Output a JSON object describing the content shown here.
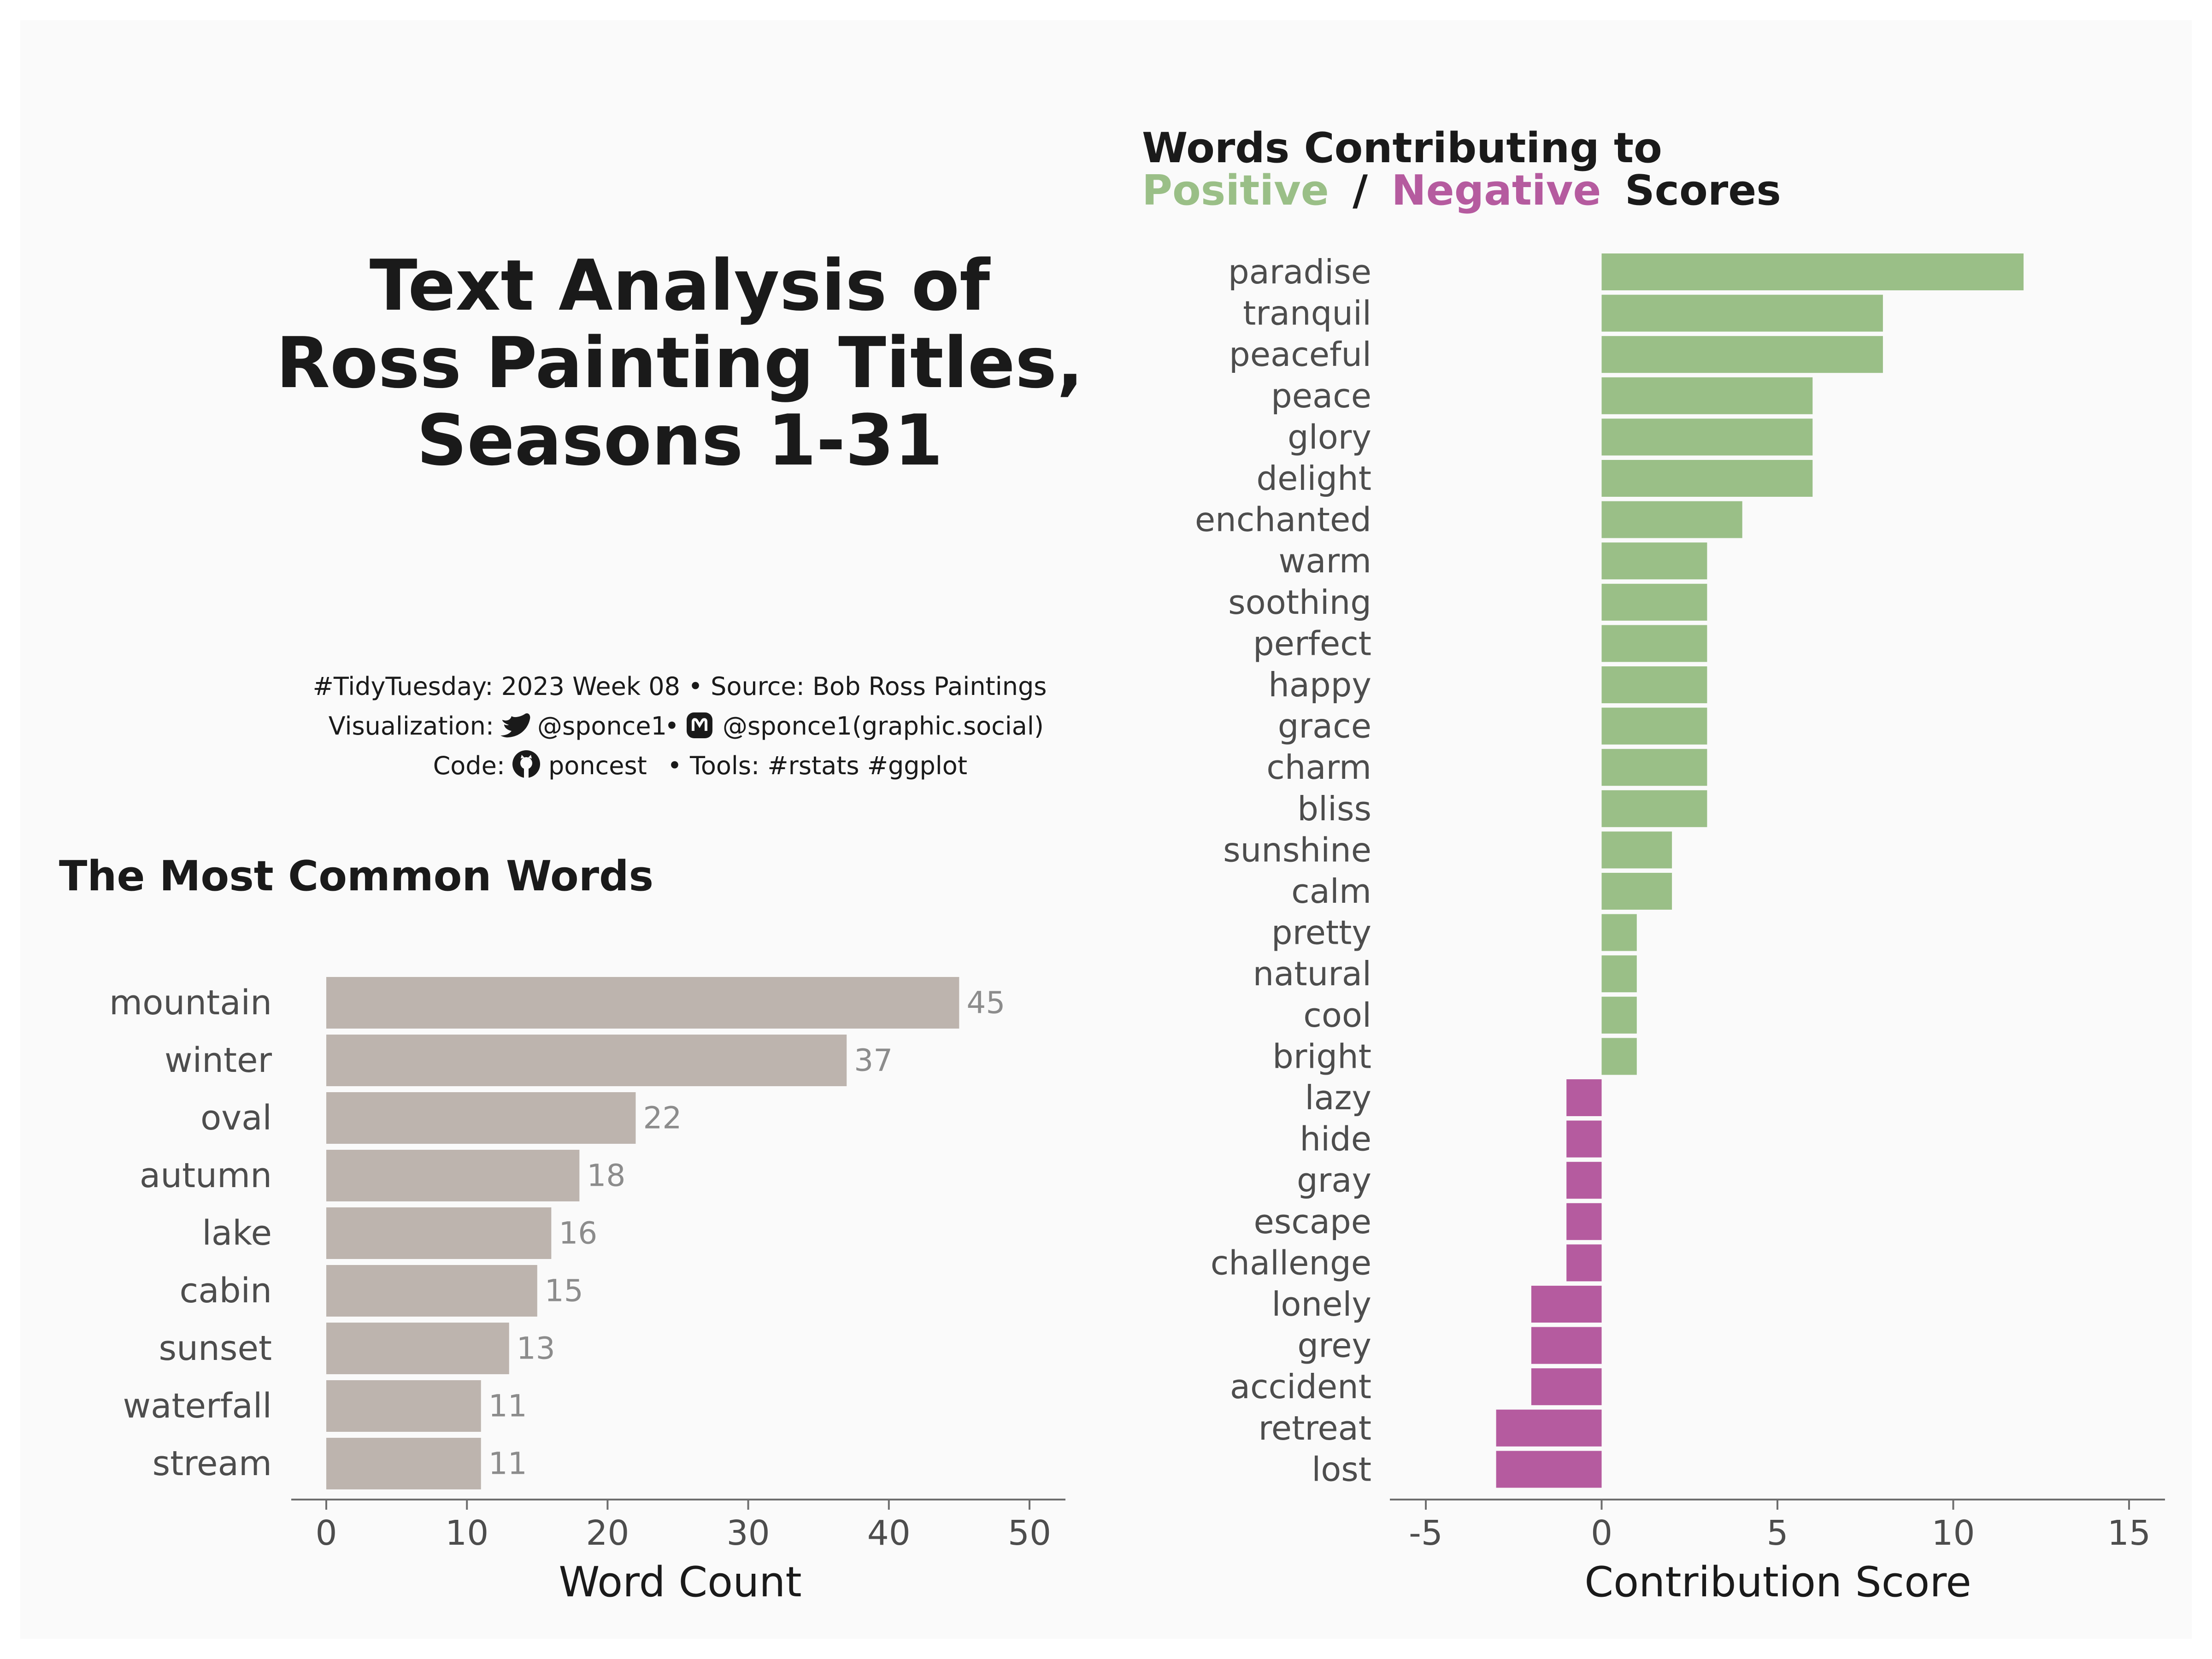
{
  "title": {
    "lines": [
      "Text Analysis of",
      "Ross Painting Titles,",
      "Seasons 1-31"
    ]
  },
  "caption": {
    "line1": "#TidyTuesday: 2023 Week 08 • Source: Bob Ross Paintings",
    "line2_prefix": "Visualization:",
    "line2_twitter": "@sponce1",
    "line2_sep": "•",
    "line2_mastodon": "@sponce1(graphic.social)",
    "line3_prefix": "Code:",
    "line3_github": "poncest",
    "line3_tools": "• Tools: #rstats #ggplot",
    "icons": [
      "twitter-bird-icon",
      "mastodon-icon",
      "github-icon"
    ]
  },
  "colors": {
    "background": "#fafafa",
    "neutral_bar": "#bdb4ae",
    "positive": "#9abf87",
    "negative": "#b55b9f",
    "text_dark": "#1a1a1a",
    "text_mid": "#4d4d4d",
    "label_grey": "#8c8c8c"
  },
  "chart_data": [
    {
      "type": "bar",
      "orientation": "horizontal",
      "title": "The Most Common Words",
      "xlabel": "Word Count",
      "ylabel": "",
      "categories": [
        "mountain",
        "winter",
        "oval",
        "autumn",
        "lake",
        "cabin",
        "sunset",
        "waterfall",
        "stream"
      ],
      "values": [
        45,
        37,
        22,
        18,
        16,
        15,
        13,
        11,
        11
      ],
      "data_labels": [
        "45",
        "37",
        "22",
        "18",
        "16",
        "15",
        "13",
        "11",
        "11"
      ],
      "xlim": [
        0,
        50
      ],
      "xticks": [
        0,
        10,
        20,
        30,
        40,
        50
      ],
      "xtick_labels": [
        "0",
        "10",
        "20",
        "30",
        "40",
        "50"
      ],
      "grid": false
    },
    {
      "type": "bar",
      "orientation": "horizontal",
      "title_line1": "Words Contributing to",
      "title_positive": "Positive",
      "title_sep": "/",
      "title_negative": "Negative",
      "title_suffix": "Scores",
      "xlabel": "Contribution Score",
      "ylabel": "",
      "categories": [
        "paradise",
        "tranquil",
        "peaceful",
        "peace",
        "glory",
        "delight",
        "enchanted",
        "warm",
        "soothing",
        "perfect",
        "happy",
        "grace",
        "charm",
        "bliss",
        "sunshine",
        "calm",
        "pretty",
        "natural",
        "cool",
        "bright",
        "lazy",
        "hide",
        "gray",
        "escape",
        "challenge",
        "lonely",
        "grey",
        "accident",
        "retreat",
        "lost"
      ],
      "values": [
        12,
        8,
        8,
        6,
        6,
        6,
        4,
        3,
        3,
        3,
        3,
        3,
        3,
        3,
        2,
        2,
        1,
        1,
        1,
        1,
        -1,
        -1,
        -1,
        -1,
        -1,
        -2,
        -2,
        -2,
        -3,
        -3
      ],
      "xlim": [
        -5,
        15
      ],
      "xticks": [
        -5,
        0,
        5,
        10,
        15
      ],
      "xtick_labels": [
        "-5",
        "0",
        "5",
        "10",
        "15"
      ],
      "grid": false
    }
  ]
}
